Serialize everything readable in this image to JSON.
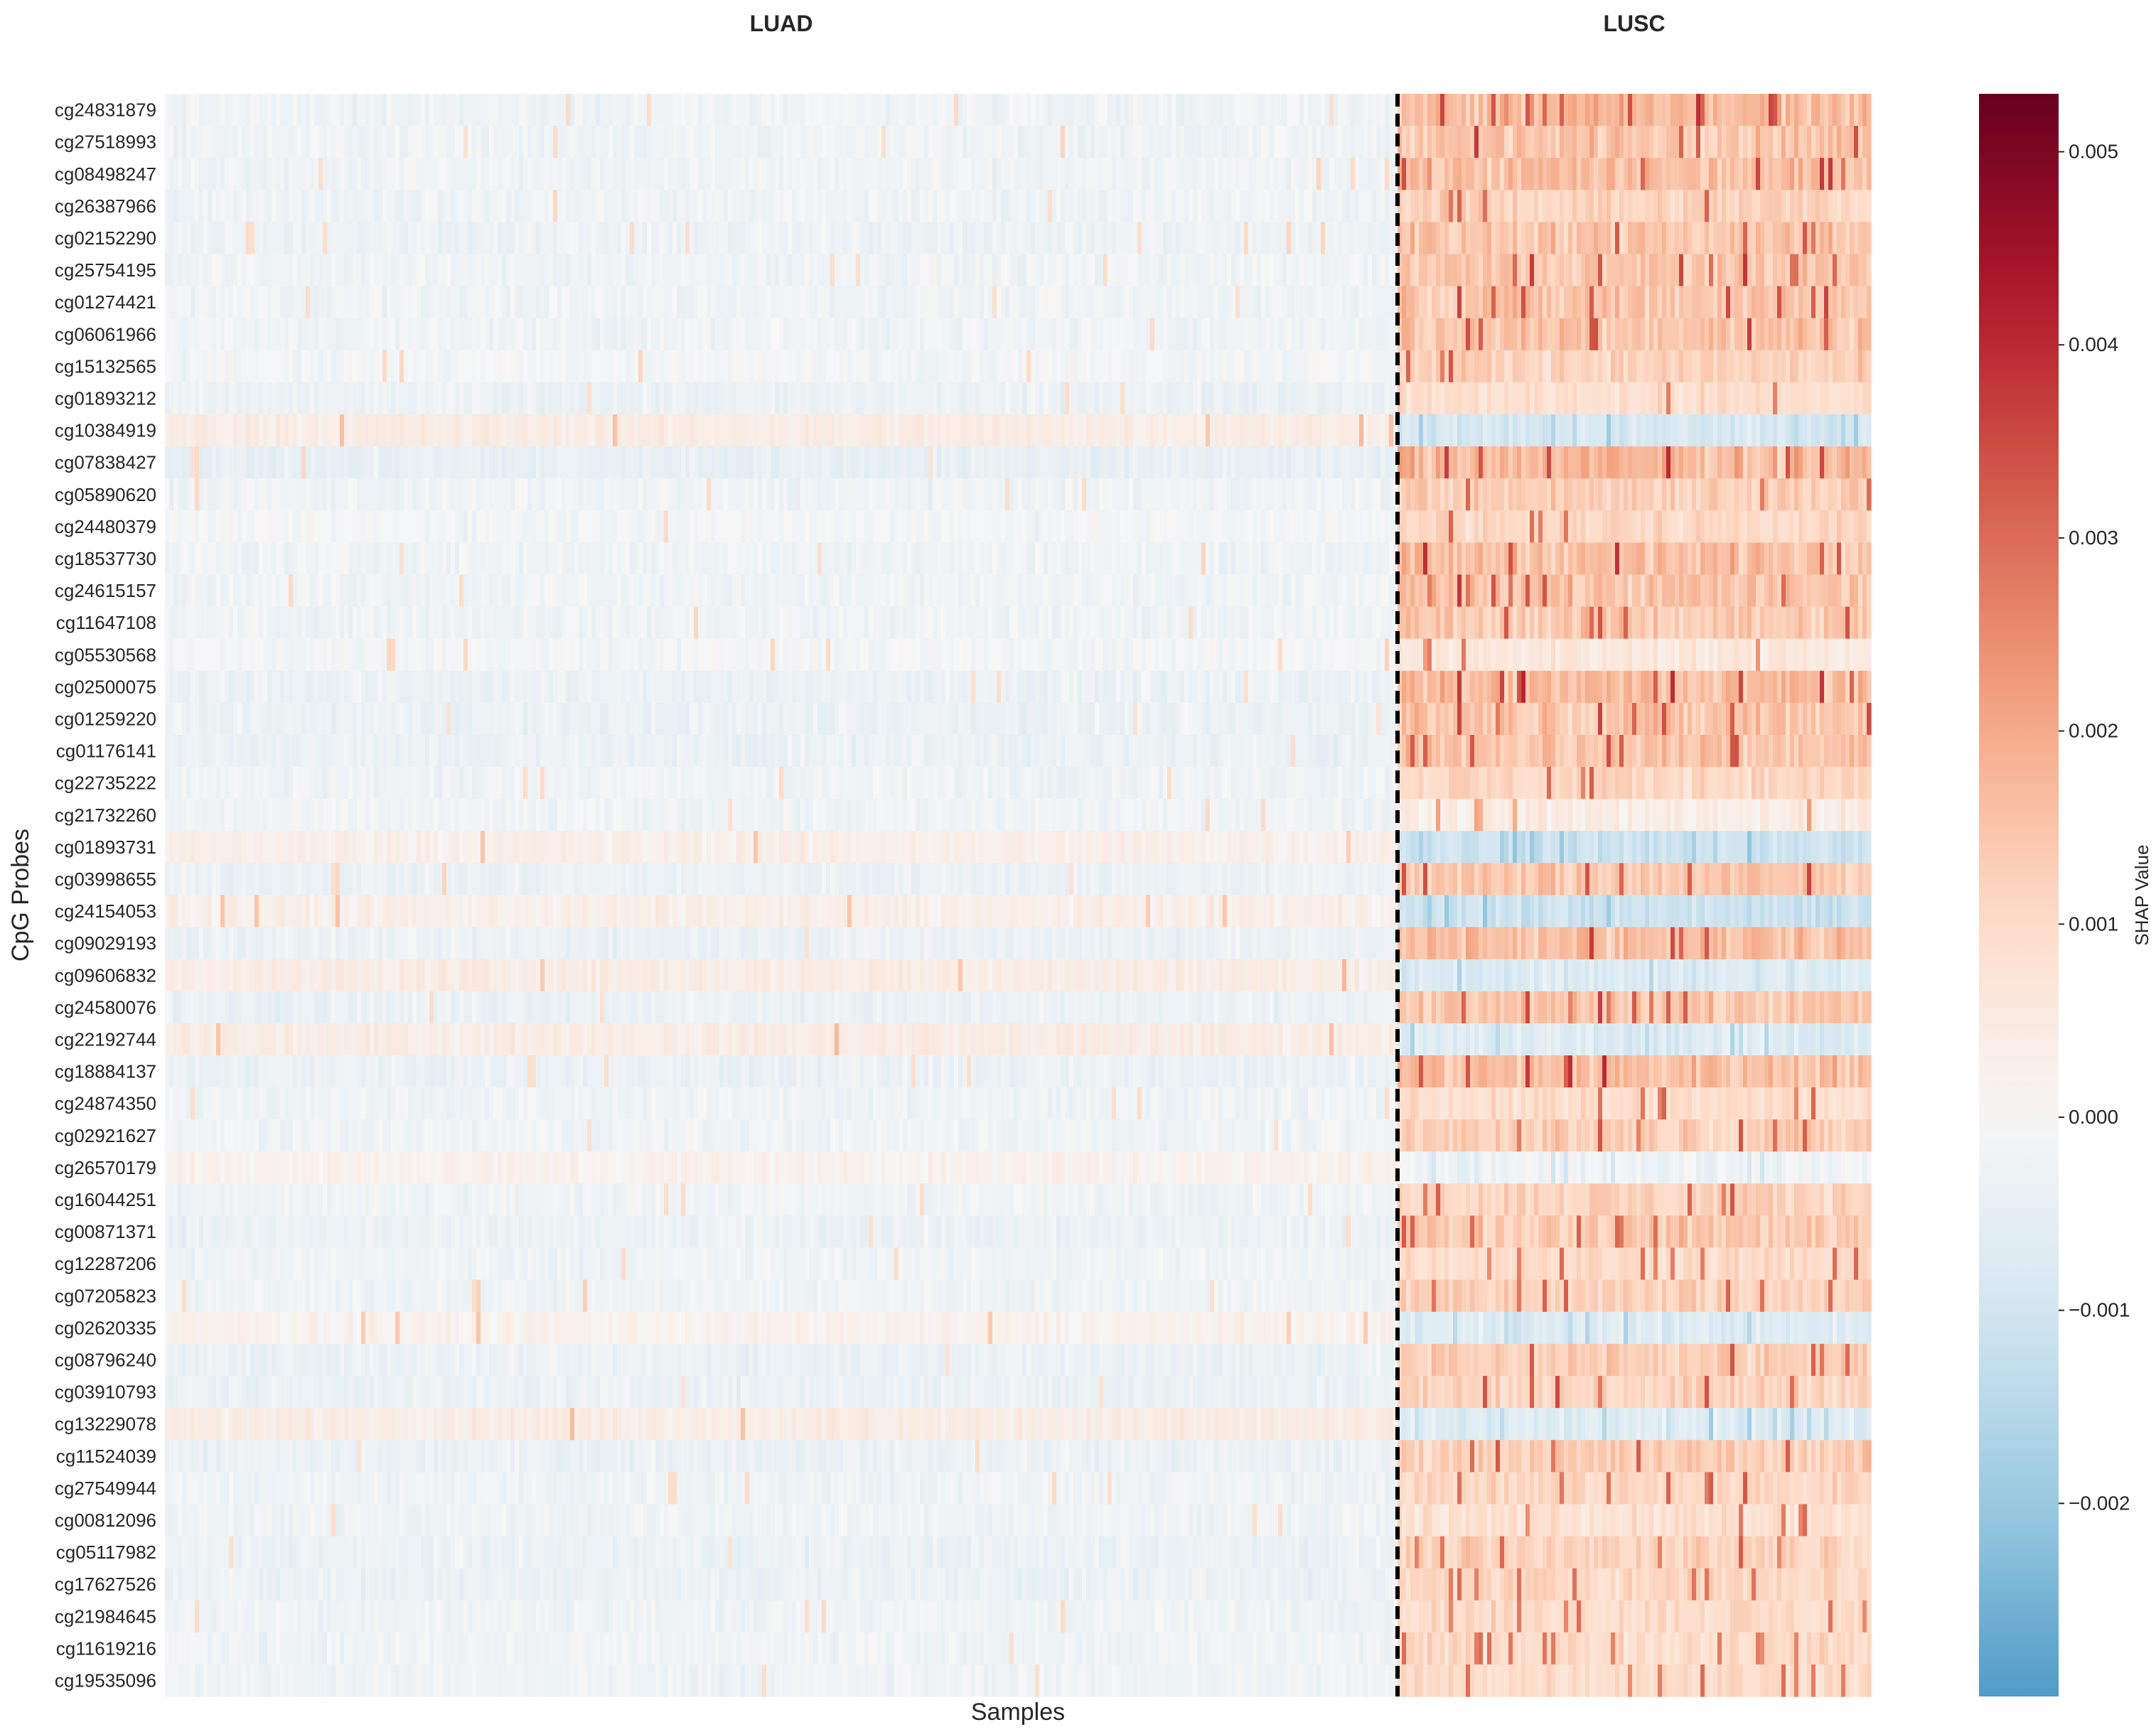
{
  "chart_data": {
    "type": "heatmap",
    "xlabel": "Samples",
    "ylabel": "CpG Probes",
    "colorbar_label": "SHAP Value",
    "colorscale": "RdBu_r",
    "color_range": [
      -0.003,
      0.0053
    ],
    "colorbar_ticks": [
      0.005,
      0.004,
      0.003,
      0.002,
      0.001,
      0.0,
      -0.001,
      -0.002
    ],
    "colorbar_tick_labels": [
      "0.005",
      "0.004",
      "0.003",
      "0.002",
      "0.001",
      "0.000",
      "−0.001",
      "−0.002"
    ],
    "groups": [
      {
        "name": "LUAD",
        "samples": 289
      },
      {
        "name": "LUSC",
        "samples": 111
      }
    ],
    "group_divider": "dashed",
    "probes": [
      "cg24831879",
      "cg27518993",
      "cg08498247",
      "cg26387966",
      "cg02152290",
      "cg25754195",
      "cg01274421",
      "cg06061966",
      "cg15132565",
      "cg01893212",
      "cg10384919",
      "cg07838427",
      "cg05890620",
      "cg24480379",
      "cg18537730",
      "cg24615157",
      "cg11647108",
      "cg05530568",
      "cg02500075",
      "cg01259220",
      "cg01176141",
      "cg22735222",
      "cg21732260",
      "cg01893731",
      "cg03998655",
      "cg24154053",
      "cg09029193",
      "cg09606832",
      "cg24580076",
      "cg22192744",
      "cg18884137",
      "cg24874350",
      "cg02921627",
      "cg26570179",
      "cg16044251",
      "cg00871371",
      "cg12287206",
      "cg07205823",
      "cg02620335",
      "cg08796240",
      "cg03910793",
      "cg13229078",
      "cg11524039",
      "cg27549944",
      "cg00812096",
      "cg05117982",
      "cg17627526",
      "cg21984645",
      "cg11619216",
      "cg19535096"
    ],
    "mean_shap_luad": [
      -0.0002,
      -0.0002,
      -0.0002,
      -0.0002,
      -0.00025,
      -0.0002,
      -0.0002,
      -0.0002,
      -0.0001,
      -0.0003,
      0.0004,
      -0.0004,
      -0.0002,
      -0.0001,
      -0.0002,
      -0.0002,
      -0.0002,
      -0.0001,
      -0.0003,
      -0.0003,
      -0.0003,
      -0.0002,
      -0.0002,
      0.0003,
      -0.0003,
      0.0003,
      -0.0003,
      0.0004,
      -0.0003,
      0.0004,
      -0.0003,
      -0.0002,
      -0.0002,
      0.0002,
      -0.0002,
      -0.0003,
      -0.0002,
      -0.0002,
      0.0002,
      -0.0003,
      -0.0003,
      0.0004,
      -0.0003,
      -0.0002,
      -0.0002,
      -0.0003,
      -0.0003,
      -0.0002,
      -0.0002,
      -0.0002
    ],
    "mean_shap_lusc": [
      0.0017,
      0.0015,
      0.0016,
      0.0012,
      0.0015,
      0.0014,
      0.0015,
      0.0015,
      0.0012,
      0.0009,
      -0.0009,
      0.0017,
      0.0013,
      0.0011,
      0.0016,
      0.0015,
      0.0014,
      0.0006,
      0.0016,
      0.0015,
      0.0015,
      0.0011,
      0.0004,
      -0.0011,
      0.0014,
      -0.0011,
      0.0016,
      -0.0007,
      0.0014,
      -0.0007,
      0.0016,
      0.0009,
      0.0013,
      -0.0002,
      0.0012,
      0.0014,
      0.001,
      0.0012,
      -0.0007,
      0.0013,
      0.0012,
      -0.0007,
      0.0013,
      0.0011,
      0.0008,
      0.0012,
      0.0011,
      0.001,
      0.001,
      0.001
    ],
    "grid": false,
    "legend": "colorbar-right"
  }
}
